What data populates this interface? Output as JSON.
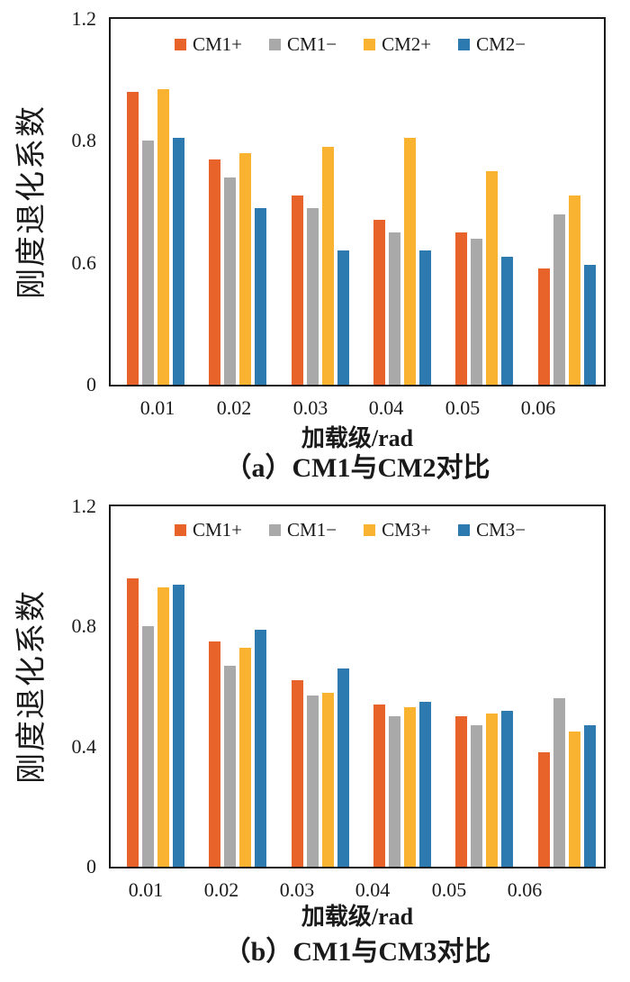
{
  "figure": {
    "background": "#ffffff",
    "axis_color": "#1a1a1a",
    "text_color": "#1a1a1a"
  },
  "chart_data": [
    {
      "type": "bar",
      "panel": "a",
      "title": "（a）CM1与CM2对比",
      "xlabel": "加载级/rad",
      "ylabel": "刚度退化系数",
      "categories": [
        "0.01",
        "0.02",
        "0.03",
        "0.04",
        "0.05",
        "0.06"
      ],
      "ylim": [
        0,
        1.2
      ],
      "y_tick_labels": [
        "0",
        "0.6",
        "0.8",
        "1.2"
      ],
      "y_tick_values": [
        0,
        0.6,
        0.8,
        1.2
      ],
      "axis_note": "y-axis tick labels 0, 0.6, 0.8, 1.2 are printed at equal spacing (non-linear scale as in original figure)",
      "grid": false,
      "legend_position": "top-center-inside",
      "series": [
        {
          "name": "CM1+",
          "color": "#E7632A",
          "values": [
            0.96,
            0.77,
            0.71,
            0.67,
            0.65,
            0.57
          ]
        },
        {
          "name": "CM1−",
          "color": "#A9A9A9",
          "values": [
            0.8,
            0.74,
            0.69,
            0.65,
            0.64,
            0.68
          ]
        },
        {
          "name": "CM2+",
          "color": "#FAB331",
          "values": [
            0.97,
            0.78,
            0.79,
            0.81,
            0.75,
            0.71
          ]
        },
        {
          "name": "CM2−",
          "color": "#2D7AB1",
          "values": [
            0.81,
            0.69,
            0.62,
            0.62,
            0.61,
            0.59
          ]
        }
      ]
    },
    {
      "type": "bar",
      "panel": "b",
      "title": "（b）CM1与CM3对比",
      "xlabel": "加载级/rad",
      "ylabel": "刚度退化系数",
      "categories": [
        "0.01",
        "0.02",
        "0.03",
        "0.04",
        "0.05",
        "0.06"
      ],
      "ylim": [
        0,
        1.2
      ],
      "y_tick_labels": [
        "0",
        "0.4",
        "0.8",
        "1.2"
      ],
      "y_tick_values": [
        0,
        0.4,
        0.8,
        1.2
      ],
      "axis_note": "linear y-axis",
      "grid": false,
      "legend_position": "top-center-inside",
      "series": [
        {
          "name": "CM1+",
          "color": "#E7632A",
          "values": [
            0.96,
            0.75,
            0.62,
            0.54,
            0.5,
            0.38
          ]
        },
        {
          "name": "CM1−",
          "color": "#A9A9A9",
          "values": [
            0.8,
            0.67,
            0.57,
            0.5,
            0.47,
            0.56
          ]
        },
        {
          "name": "CM3+",
          "color": "#FAB331",
          "values": [
            0.93,
            0.73,
            0.58,
            0.53,
            0.51,
            0.45
          ]
        },
        {
          "name": "CM3−",
          "color": "#2D7AB1",
          "values": [
            0.94,
            0.79,
            0.66,
            0.55,
            0.52,
            0.47
          ]
        }
      ]
    }
  ]
}
